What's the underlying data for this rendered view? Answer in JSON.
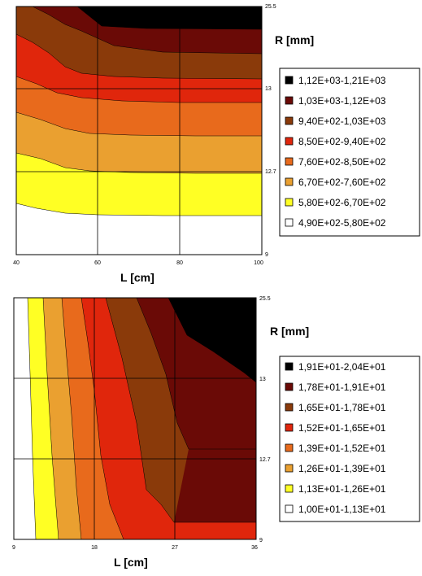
{
  "chart_data": [
    {
      "type": "contour",
      "xlabel": "L [cm]",
      "ylabel": "R [mm]",
      "x_ticks": [
        "40",
        "60",
        "80",
        "100"
      ],
      "y_ticks": [
        "9",
        "12.7",
        "13",
        "25.5"
      ],
      "xlim": [
        40,
        100
      ],
      "y_categories": [
        "9",
        "12.7",
        "13",
        "25.5"
      ],
      "grid": true,
      "legend_position": "right",
      "legend": [
        {
          "label": "1,12E+03-1,21E+03",
          "color": "#000000"
        },
        {
          "label": "1,03E+03-1,12E+03",
          "color": "#6a0a06"
        },
        {
          "label": "9,40E+02-1,03E+03",
          "color": "#8a3a0a"
        },
        {
          "label": "8,50E+02-9,40E+02",
          "color": "#e0260c"
        },
        {
          "label": "7,60E+02-8,50E+02",
          "color": "#e86a1c"
        },
        {
          "label": "6,70E+02-7,60E+02",
          "color": "#eaa030"
        },
        {
          "label": "5,80E+02-6,70E+02",
          "color": "#ffff24"
        },
        {
          "label": "4,90E+02-5,80E+02",
          "color": "#ffffff"
        }
      ]
    },
    {
      "type": "contour",
      "xlabel": "L [cm]",
      "ylabel": "R [mm]",
      "x_ticks": [
        "9",
        "18",
        "27",
        "36"
      ],
      "y_ticks": [
        "9",
        "12.7",
        "13",
        "25.5"
      ],
      "xlim": [
        9,
        36
      ],
      "y_categories": [
        "9",
        "12.7",
        "13",
        "25.5"
      ],
      "grid": true,
      "legend_position": "right",
      "legend": [
        {
          "label": "1,91E+01-2,04E+01",
          "color": "#000000"
        },
        {
          "label": "1,78E+01-1,91E+01",
          "color": "#6a0a06"
        },
        {
          "label": "1,65E+01-1,78E+01",
          "color": "#8a3a0a"
        },
        {
          "label": "1,52E+01-1,65E+01",
          "color": "#e0260c"
        },
        {
          "label": "1,39E+01-1,52E+01",
          "color": "#e86a1c"
        },
        {
          "label": "1,26E+01-1,39E+01",
          "color": "#eaa030"
        },
        {
          "label": "1,13E+01-1,26E+01",
          "color": "#ffff24"
        },
        {
          "label": "1,00E+01-1,13E+01",
          "color": "#ffffff"
        }
      ]
    }
  ]
}
